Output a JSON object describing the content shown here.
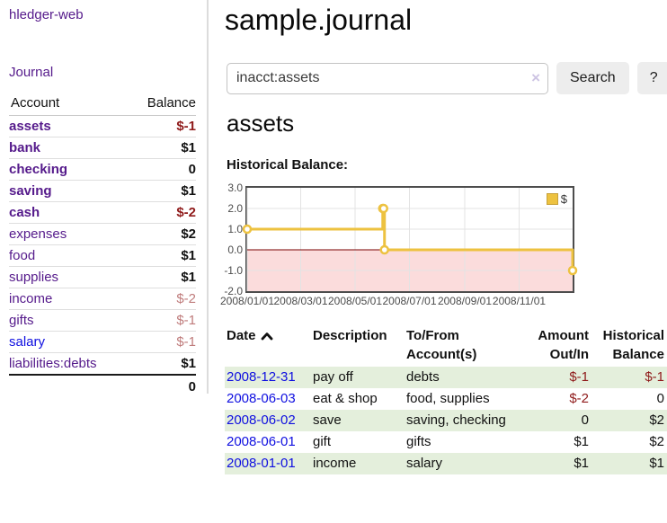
{
  "colors": {
    "link_purple": "#551a8b",
    "link_blue": "#0f0fe0",
    "negative_strong": "#8f1a1a",
    "negative_soft": "#bf7b7b",
    "row_stripe_green": "#e4efdc",
    "chart_line_gold": "#edc240",
    "chart_negative_fill": "#fbdcdc",
    "chart_zero_line": "#7a0000",
    "button_gray": "#ededed"
  },
  "icons": {
    "search_clear": "×",
    "sort_ascending": "chevron-up",
    "legend_swatch": "gold-square"
  },
  "sidebar": {
    "brand": "hledger-web",
    "nav_journal": "Journal",
    "accounts": {
      "headers": {
        "account": "Account",
        "balance": "Balance"
      },
      "rows": [
        {
          "name": "assets",
          "balance": "$-1",
          "level": 1,
          "bold": true,
          "neg": "strong",
          "link": "purple"
        },
        {
          "name": "bank",
          "balance": "$1",
          "level": 2,
          "bold": true,
          "neg": "none",
          "link": "purple"
        },
        {
          "name": "checking",
          "balance": "0",
          "level": 3,
          "bold": true,
          "neg": "none",
          "link": "purple"
        },
        {
          "name": "saving",
          "balance": "$1",
          "level": 3,
          "bold": true,
          "neg": "none",
          "link": "purple"
        },
        {
          "name": "cash",
          "balance": "$-2",
          "level": 2,
          "bold": true,
          "neg": "strong",
          "link": "purple"
        },
        {
          "name": "expenses",
          "balance": "$2",
          "level": 1,
          "bold": false,
          "neg": "none",
          "link": "purple"
        },
        {
          "name": "food",
          "balance": "$1",
          "level": 2,
          "bold": false,
          "neg": "none",
          "link": "purple"
        },
        {
          "name": "supplies",
          "balance": "$1",
          "level": 2,
          "bold": false,
          "neg": "none",
          "link": "purple"
        },
        {
          "name": "income",
          "balance": "$-2",
          "level": 1,
          "bold": false,
          "neg": "soft",
          "link": "purple"
        },
        {
          "name": "gifts",
          "balance": "$-1",
          "level": 2,
          "bold": false,
          "neg": "soft",
          "link": "purple"
        },
        {
          "name": "salary",
          "balance": "$-1",
          "level": 2,
          "bold": false,
          "neg": "soft",
          "link": "blue"
        },
        {
          "name": "liabilities:debts",
          "balance": "$1",
          "level": 1,
          "bold": false,
          "neg": "none",
          "link": "purple"
        }
      ],
      "total": "0"
    }
  },
  "main": {
    "title": "sample.journal",
    "search": {
      "value": "inacct:assets",
      "clear_icon": "×",
      "search_button": "Search",
      "help_button": "?"
    },
    "account_heading": "assets",
    "chart_label": "Historical Balance:",
    "register": {
      "headers": [
        "Date",
        "Description",
        "To/From Account(s)",
        "Amount Out/In",
        "Historical Balance"
      ],
      "rows": [
        {
          "date": "2008-12-31",
          "description": "pay off",
          "accounts": "debts",
          "amount": "$-1",
          "amount_neg": true,
          "balance": "$-1",
          "balance_neg": true
        },
        {
          "date": "2008-06-03",
          "description": "eat & shop",
          "accounts": "food, supplies",
          "amount": "$-2",
          "amount_neg": true,
          "balance": "0",
          "balance_neg": false
        },
        {
          "date": "2008-06-02",
          "description": "save",
          "accounts": "saving, checking",
          "amount": "0",
          "amount_neg": false,
          "balance": "$2",
          "balance_neg": false
        },
        {
          "date": "2008-06-01",
          "description": "gift",
          "accounts": "gifts",
          "amount": "$1",
          "amount_neg": false,
          "balance": "$2",
          "balance_neg": false
        },
        {
          "date": "2008-01-01",
          "description": "income",
          "accounts": "salary",
          "amount": "$1",
          "amount_neg": false,
          "balance": "$1",
          "balance_neg": false
        }
      ]
    }
  },
  "chart_data": {
    "type": "line",
    "step": true,
    "title": "Historical Balance",
    "legend": {
      "label": "$",
      "position": "top-right"
    },
    "series": [
      {
        "name": "$",
        "color": "#edc240",
        "points": [
          {
            "date": "2008-01-01",
            "day": 0,
            "value": 1
          },
          {
            "date": "2008-06-01",
            "day": 152,
            "value": 2
          },
          {
            "date": "2008-06-02",
            "day": 153,
            "value": 2
          },
          {
            "date": "2008-06-03",
            "day": 154,
            "value": 0
          },
          {
            "date": "2008-12-31",
            "day": 365,
            "value": -1
          }
        ]
      }
    ],
    "x_range_days": [
      0,
      365
    ],
    "y_range": [
      -2,
      3
    ],
    "x_ticks": [
      {
        "day": 0,
        "label": "2008/01/01"
      },
      {
        "day": 60,
        "label": "2008/03/01"
      },
      {
        "day": 121,
        "label": "2008/05/01"
      },
      {
        "day": 182,
        "label": "2008/07/01"
      },
      {
        "day": 244,
        "label": "2008/09/01"
      },
      {
        "day": 305,
        "label": "2008/11/01"
      }
    ],
    "y_ticks": [
      {
        "value": 3,
        "label": "3.0"
      },
      {
        "value": 2,
        "label": "2.0"
      },
      {
        "value": 1,
        "label": "1.0"
      },
      {
        "value": 0,
        "label": "0.0"
      },
      {
        "value": -1,
        "label": "-1.0"
      },
      {
        "value": -2,
        "label": "-2.0"
      }
    ],
    "grid": true,
    "negative_region_shaded": true
  }
}
